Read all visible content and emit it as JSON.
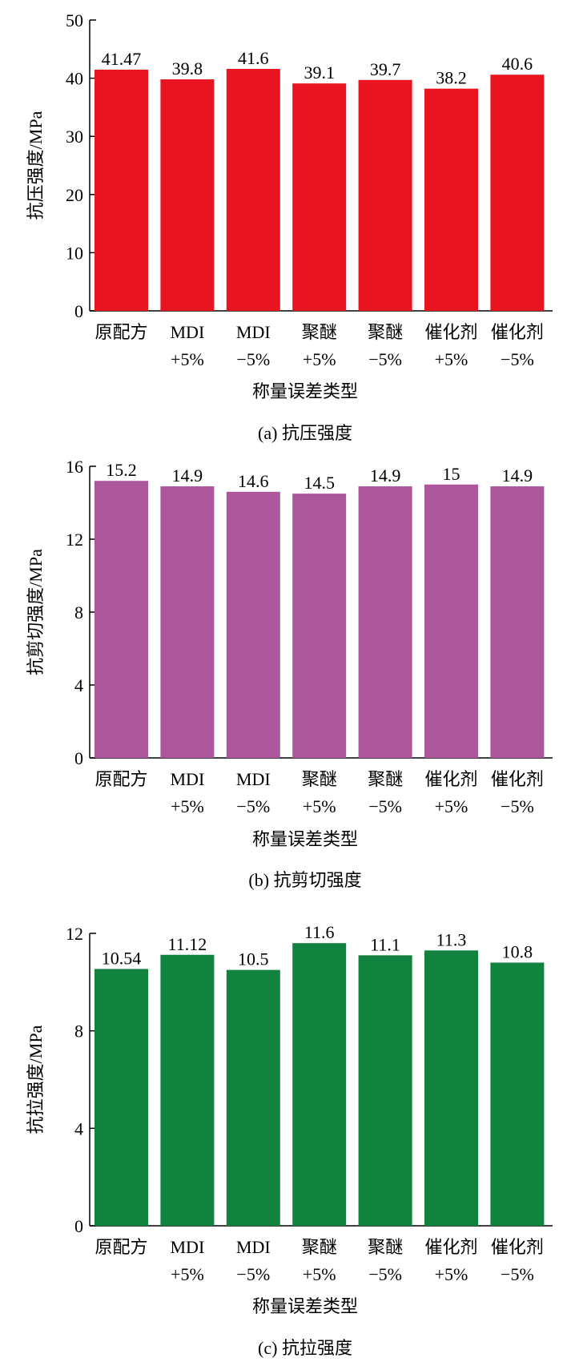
{
  "chart_data": [
    {
      "type": "bar",
      "categories": [
        [
          "原配方"
        ],
        [
          "MDI",
          "+5%"
        ],
        [
          "MDI",
          "−5%"
        ],
        [
          "聚醚",
          "+5%"
        ],
        [
          "聚醚",
          "−5%"
        ],
        [
          "催化剂",
          "+5%"
        ],
        [
          "催化剂",
          "−5%"
        ]
      ],
      "values": [
        41.47,
        39.8,
        41.6,
        39.1,
        39.7,
        38.2,
        40.6
      ],
      "value_labels": [
        "41.47",
        "39.8",
        "41.6",
        "39.1",
        "39.7",
        "38.2",
        "40.6"
      ],
      "ylabel": "抗压强度/MPa",
      "xlabel": "称量误差类型",
      "caption": "(a) 抗压强度",
      "ylim": [
        0,
        50
      ],
      "yticks": [
        "0",
        "10",
        "20",
        "30",
        "40",
        "50"
      ],
      "color": "#e8141f"
    },
    {
      "type": "bar",
      "categories": [
        [
          "原配方"
        ],
        [
          "MDI",
          "+5%"
        ],
        [
          "MDI",
          "−5%"
        ],
        [
          "聚醚",
          "+5%"
        ],
        [
          "聚醚",
          "−5%"
        ],
        [
          "催化剂",
          "+5%"
        ],
        [
          "催化剂",
          "−5%"
        ]
      ],
      "values": [
        15.2,
        14.9,
        14.6,
        14.5,
        14.9,
        15,
        14.9
      ],
      "value_labels": [
        "15.2",
        "14.9",
        "14.6",
        "14.5",
        "14.9",
        "15",
        "14.9"
      ],
      "ylabel": "抗剪切强度/MPa",
      "xlabel": "称量误差类型",
      "caption": "(b) 抗剪切强度",
      "ylim": [
        0,
        16
      ],
      "yticks": [
        "0",
        "4",
        "8",
        "12",
        "16"
      ],
      "color": "#ac579c"
    },
    {
      "type": "bar",
      "categories": [
        [
          "原配方"
        ],
        [
          "MDI",
          "+5%"
        ],
        [
          "MDI",
          "−5%"
        ],
        [
          "聚醚",
          "+5%"
        ],
        [
          "聚醚",
          "−5%"
        ],
        [
          "催化剂",
          "+5%"
        ],
        [
          "催化剂",
          "−5%"
        ]
      ],
      "values": [
        10.54,
        11.12,
        10.5,
        11.6,
        11.1,
        11.3,
        10.8
      ],
      "value_labels": [
        "10.54",
        "11.12",
        "10.5",
        "11.6",
        "11.1",
        "11.3",
        "10.8"
      ],
      "ylabel": "抗拉强度/MPa",
      "xlabel": "称量误差类型",
      "caption": "(c) 抗拉强度",
      "ylim": [
        0,
        12
      ],
      "yticks": [
        "0",
        "4",
        "8",
        "12"
      ],
      "color": "#12833e"
    }
  ]
}
